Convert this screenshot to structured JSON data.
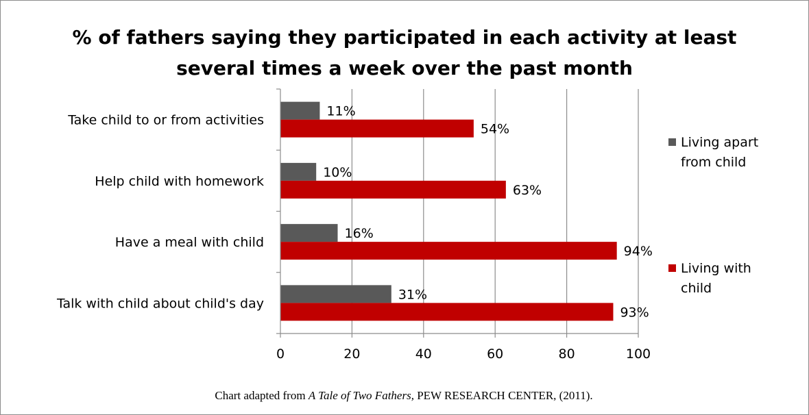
{
  "chart_data": {
    "type": "bar",
    "orientation": "horizontal",
    "title_lines": [
      "% of fathers saying they participated in each activity at least",
      "several times a week over the past month"
    ],
    "categories": [
      "Take child to or from activities",
      "Help child with homework",
      "Have a meal with child",
      "Talk with child about child's day"
    ],
    "series": [
      {
        "name_lines": [
          "Living apart",
          "from child"
        ],
        "color": "#595959",
        "values": [
          11,
          10,
          16,
          31
        ],
        "labels": [
          "11%",
          "10%",
          "16%",
          "31%"
        ]
      },
      {
        "name_lines": [
          "Living with",
          "child"
        ],
        "color": "#c00000",
        "values": [
          54,
          63,
          94,
          93
        ],
        "labels": [
          "54%",
          "63%",
          "94%",
          "93%"
        ]
      }
    ],
    "xlim": [
      0,
      100
    ],
    "xticks": [
      0,
      20,
      40,
      60,
      80,
      100
    ],
    "xtick_labels": [
      "0",
      "20",
      "40",
      "60",
      "80",
      "100"
    ],
    "grid": "vertical",
    "legend": "right"
  },
  "caption": {
    "prefix": "Chart adapted from ",
    "italic": "A Tale of Two Fathers,",
    "suffix": " PEW RESEARCH CENTER, (2011)."
  }
}
